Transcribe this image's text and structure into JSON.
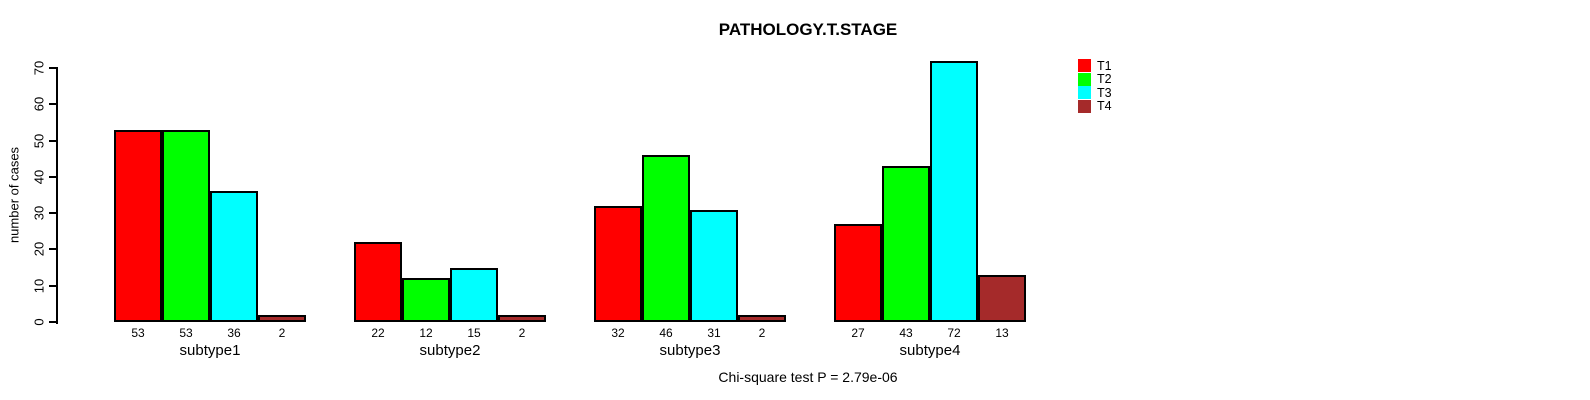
{
  "chart_data": {
    "type": "bar",
    "title": "PATHOLOGY.T.STAGE",
    "ylabel": "number of cases",
    "caption": "Chi-square test P = 2.79e-06",
    "categories": [
      "subtype1",
      "subtype2",
      "subtype3",
      "subtype4"
    ],
    "series": [
      {
        "name": "T1",
        "color": "#FF0000",
        "values": [
          53,
          22,
          32,
          27
        ]
      },
      {
        "name": "T2",
        "color": "#00FF00",
        "values": [
          53,
          12,
          46,
          43
        ]
      },
      {
        "name": "T3",
        "color": "#00FFFF",
        "values": [
          36,
          15,
          31,
          72
        ]
      },
      {
        "name": "T4",
        "color": "#A52A2A",
        "values": [
          2,
          2,
          2,
          13
        ]
      }
    ],
    "bar_value_labels": [
      [
        53,
        53,
        36,
        2
      ],
      [
        22,
        12,
        15,
        2
      ],
      [
        32,
        46,
        31,
        2
      ],
      [
        27,
        43,
        72,
        13
      ]
    ],
    "ylim": [
      0,
      70
    ],
    "yticks": [
      0,
      10,
      20,
      30,
      40,
      50,
      60,
      70
    ],
    "grid": false,
    "legend_position": "top-right",
    "axis_color": "#000000",
    "background_color": "#FFFFFF"
  }
}
